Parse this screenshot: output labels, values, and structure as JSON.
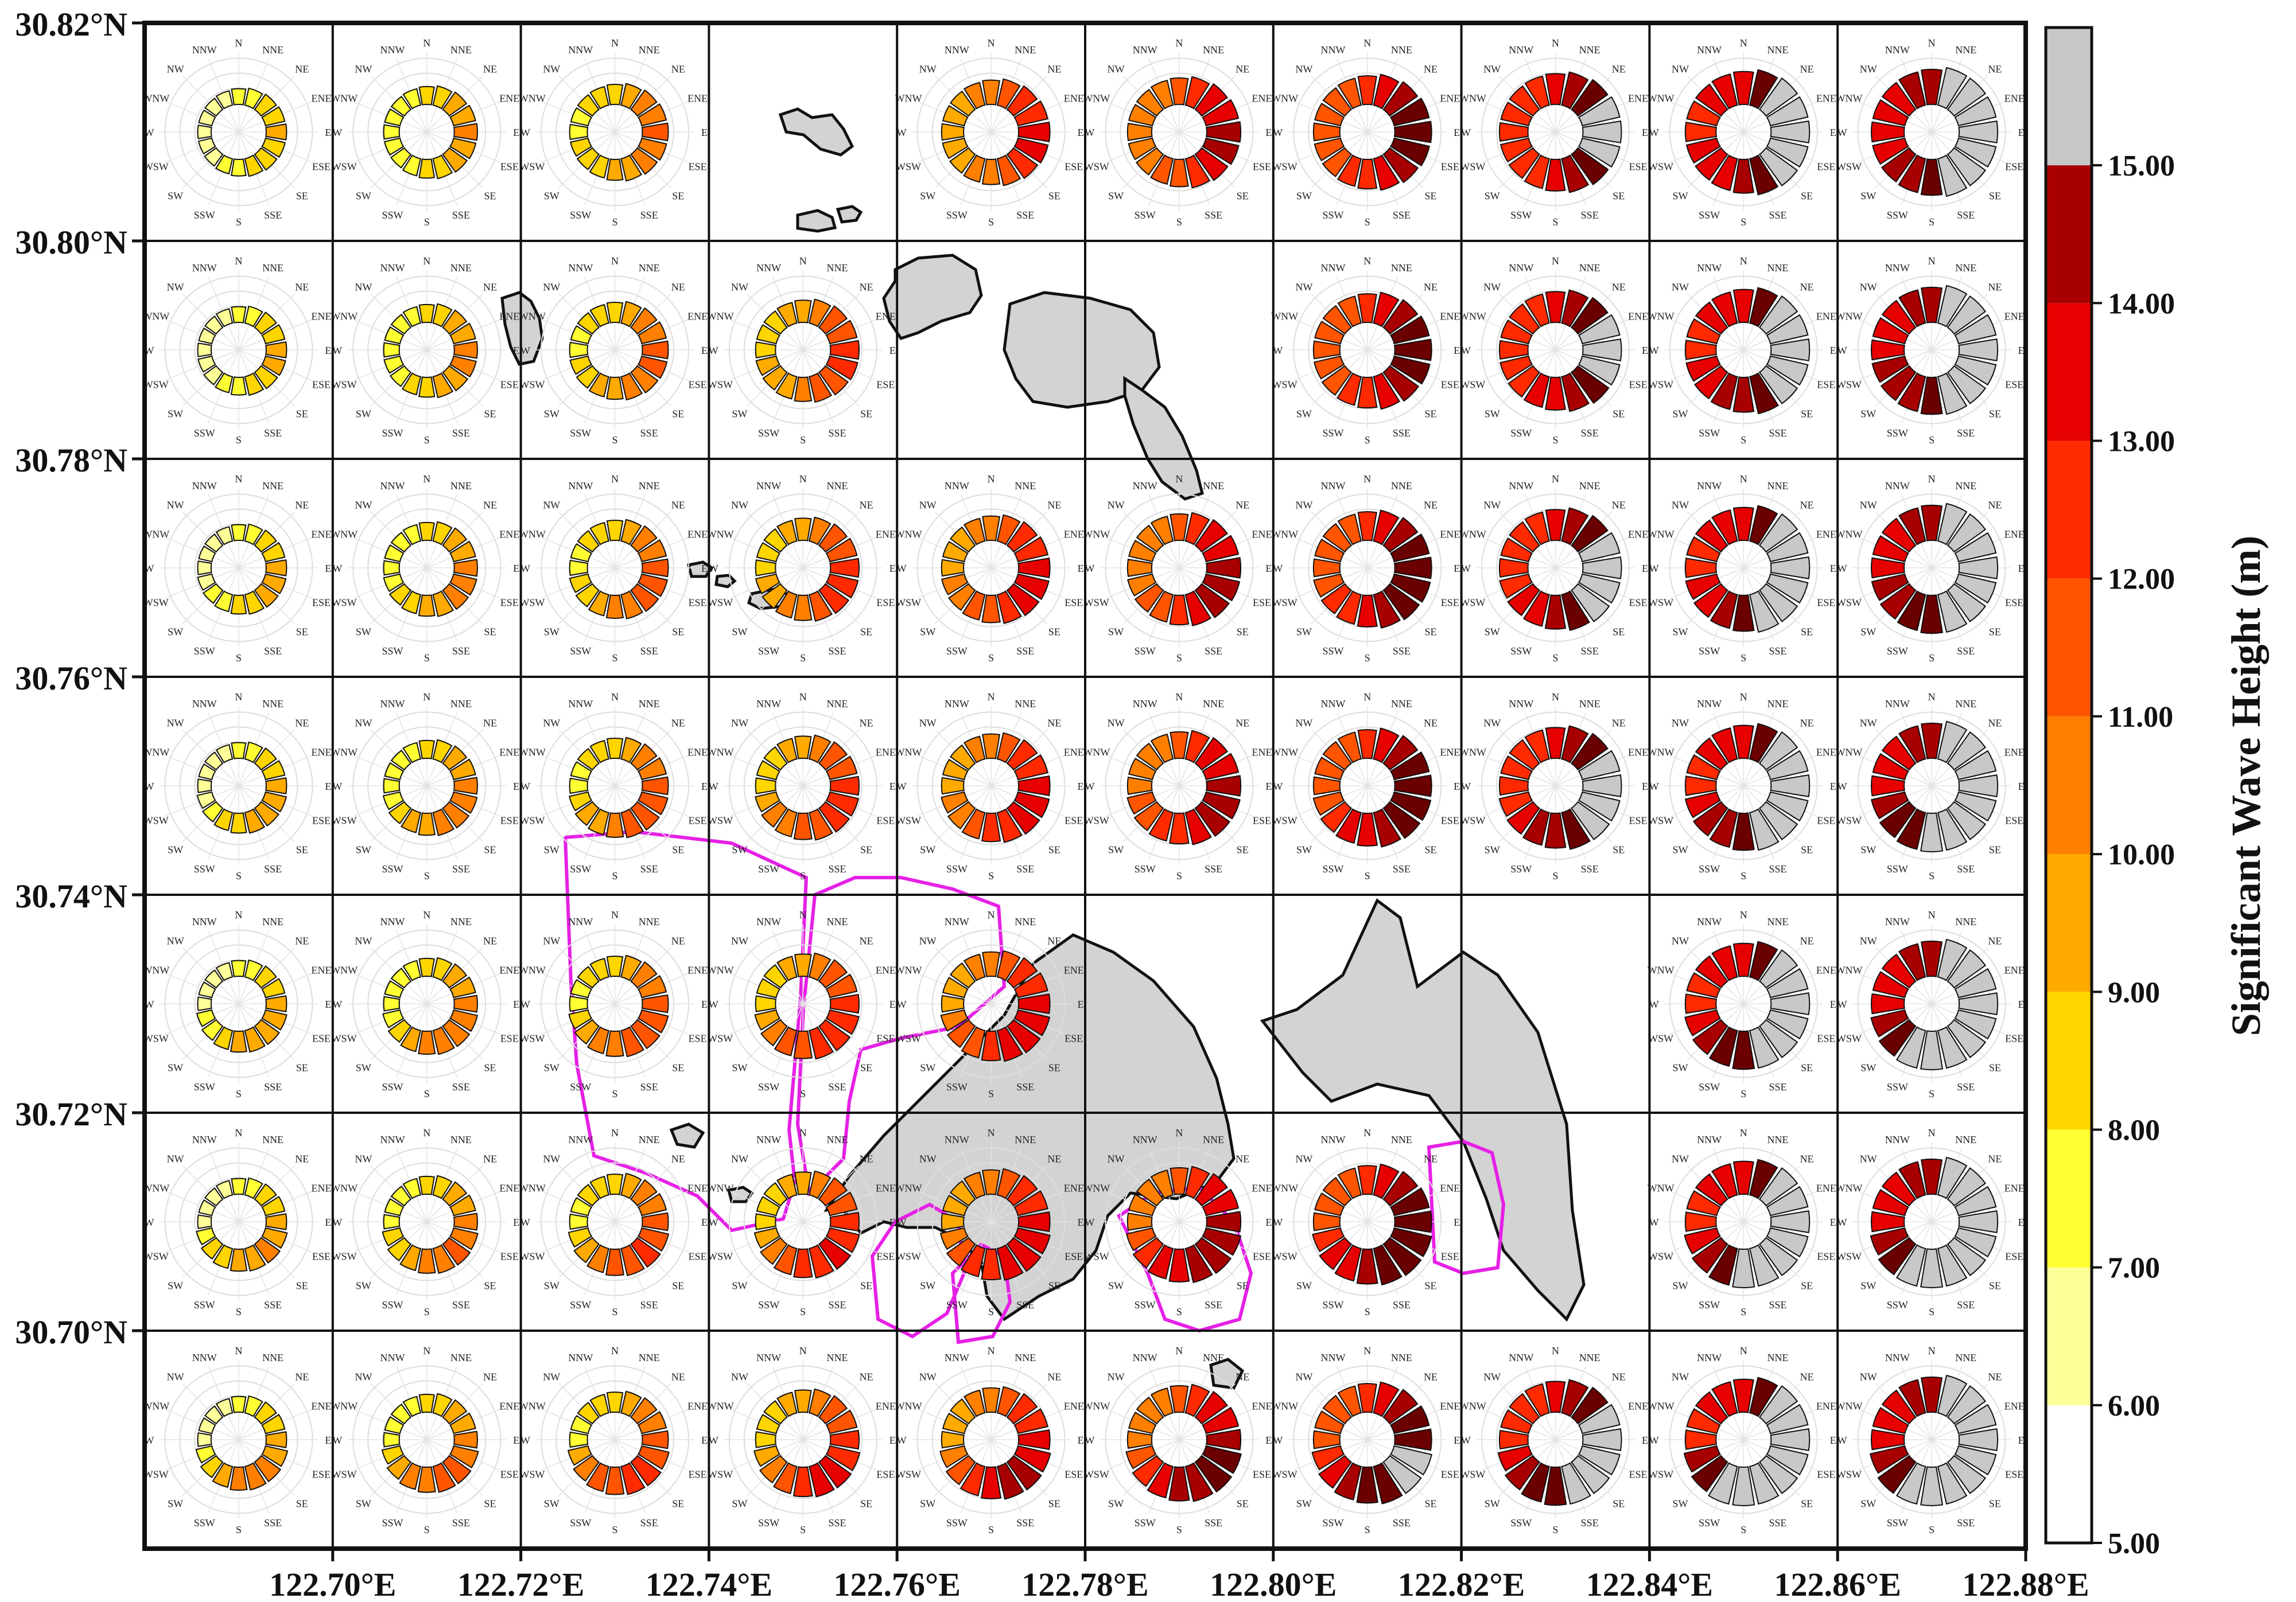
{
  "map": {
    "lat_labels": [
      "30.82°N",
      "30.80°N",
      "30.78°N",
      "30.76°N",
      "30.74°N",
      "30.72°N",
      "30.70°N"
    ],
    "lon_labels": [
      "122.70°E",
      "122.72°E",
      "122.74°E",
      "122.76°E",
      "122.78°E",
      "122.80°E",
      "122.82°E",
      "122.84°E",
      "122.86°E",
      "122.88°E"
    ],
    "directions": [
      "N",
      "NNE",
      "NE",
      "ENE",
      "E",
      "ESE",
      "SE",
      "SSE",
      "S",
      "SSW",
      "SW",
      "WSW",
      "W",
      "WNW",
      "NW",
      "NNW"
    ],
    "grid": {
      "rows": 7,
      "cols": 10
    },
    "land_color": "#d3d3d3",
    "boundary_color": "#e620e6",
    "empty_cells": [
      [
        0,
        3
      ],
      [
        1,
        4
      ],
      [
        1,
        5
      ],
      [
        4,
        5
      ],
      [
        4,
        6
      ],
      [
        4,
        7
      ],
      [
        5,
        7
      ]
    ]
  },
  "colorbar": {
    "title": "Significant Wave Height (m)",
    "ticks": [
      "5.00",
      "6.00",
      "7.00",
      "8.00",
      "9.00",
      "10.00",
      "11.00",
      "12.00",
      "13.00",
      "14.00",
      "15.00"
    ],
    "colors": [
      "#ffffff",
      "#ffff99",
      "#ffff33",
      "#ffd500",
      "#ffaa00",
      "#ff7f00",
      "#ff5500",
      "#ff2a00",
      "#e60000",
      "#a80000",
      "#6b0000",
      "#300000",
      "#c8c8c8"
    ]
  }
}
